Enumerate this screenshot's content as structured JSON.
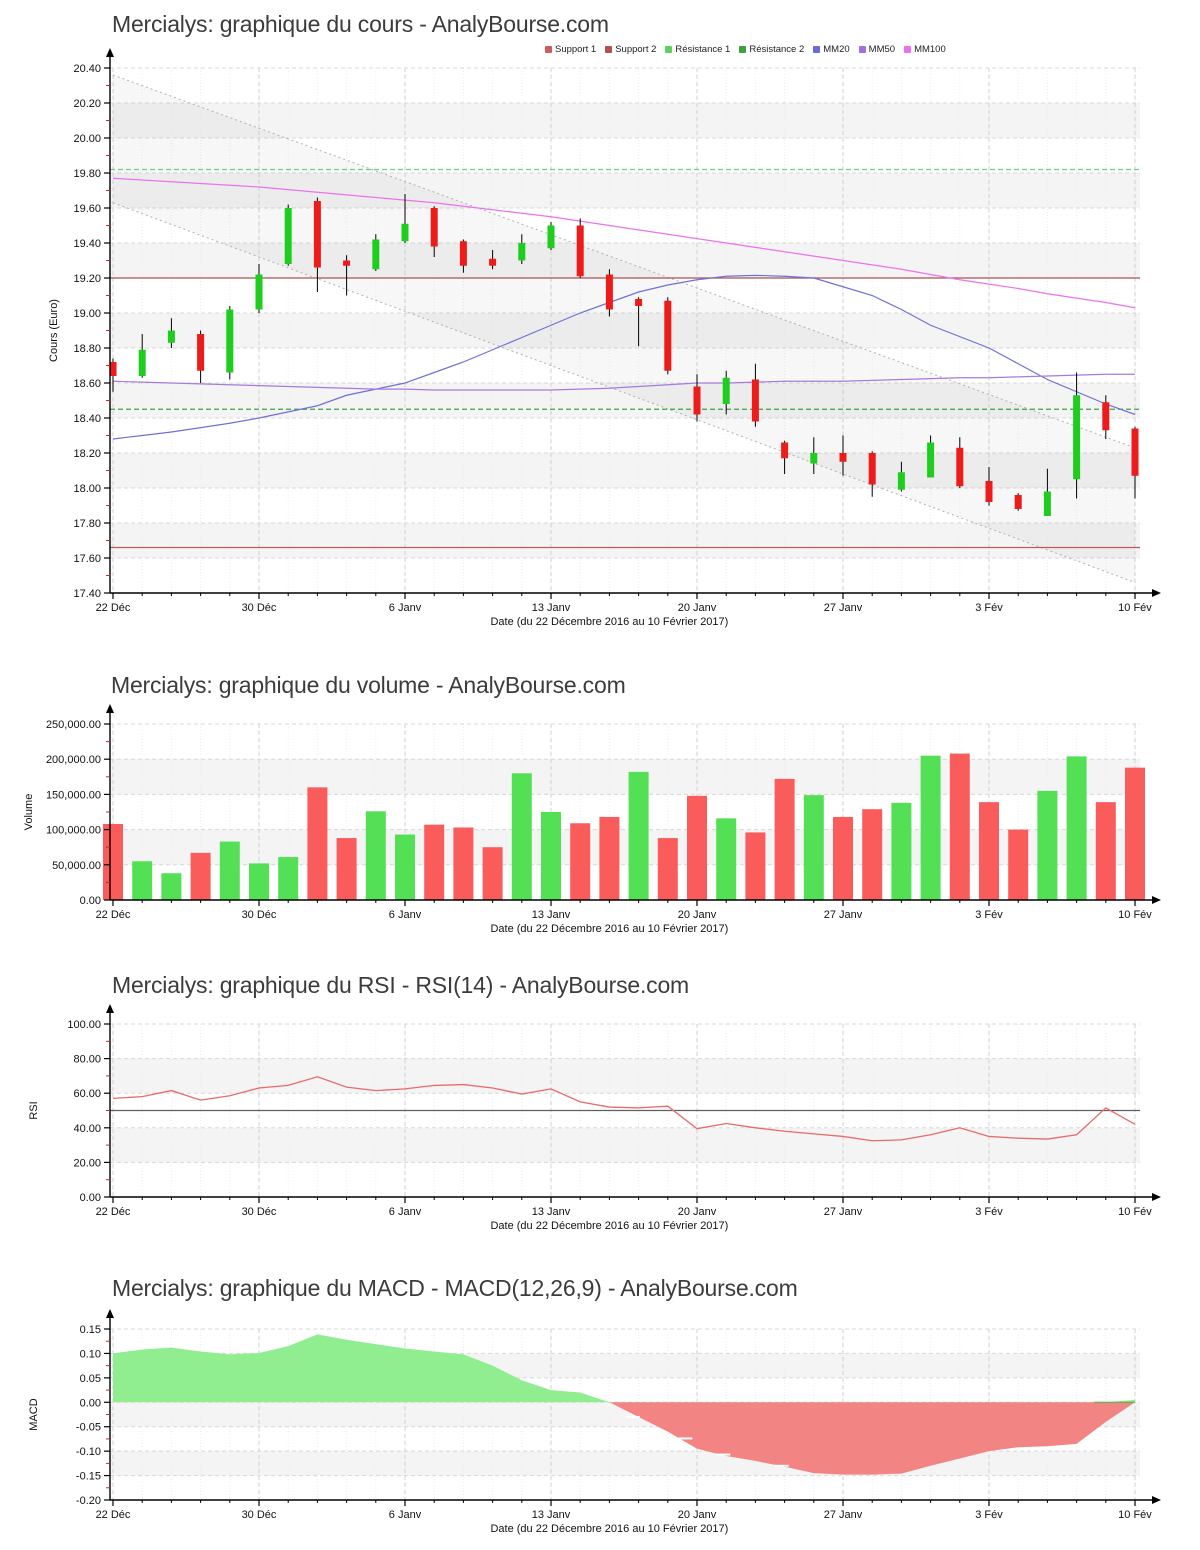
{
  "x_axis": {
    "label": "Date (du 22 Décembre 2016 au 10 Février 2017)",
    "tick_labels": [
      "22 Déc",
      "30 Déc",
      "6 Janv",
      "13 Janv",
      "20 Janv",
      "27 Janv",
      "3 Fév",
      "10 Fév"
    ],
    "tick_days": [
      1,
      6,
      11,
      16,
      21,
      26,
      31,
      36
    ],
    "n_days": 36
  },
  "colors": {
    "title_text": "#3c3c3c",
    "band": "#f4f4f4",
    "grid": "#d8d8d8",
    "day_grid": "#ededed",
    "axis": "#000000",
    "minor_tick": "#cc2222",
    "candle_up": "#1ecd1e",
    "candle_down": "#ee1b1b",
    "wick": "#000000",
    "volume_up": "#54e054",
    "volume_down": "#fa5c5c",
    "rsi_line": "#e96a6a",
    "rsi_midline": "#606060",
    "macd_pos": "#90ee90",
    "macd_neg": "#f38484",
    "support1": "#aa5252",
    "support2": "#bd5b5b",
    "resistance1": "#74ce74",
    "resistance2": "#3da23d",
    "mm20": "#7070d8",
    "mm50": "#a67ae0",
    "mm100": "#ec72ec",
    "channel_line": "#b0b0b0",
    "channel_fill": "rgba(140,140,140,0.07)"
  },
  "legend": {
    "items": [
      {
        "label": "Support 1",
        "color": "#cd5c5c"
      },
      {
        "label": "Support 2",
        "color": "#b05050"
      },
      {
        "label": "Résistance 1",
        "color": "#5dd05d"
      },
      {
        "label": "Résistance 2",
        "color": "#3da23d"
      },
      {
        "label": "MM20",
        "color": "#6a6ad8"
      },
      {
        "label": "MM50",
        "color": "#a070e0"
      },
      {
        "label": "MM100",
        "color": "#ee6fee"
      }
    ]
  },
  "chart_data": [
    {
      "id": "cours",
      "type": "candlestick",
      "title": "Mercialys: graphique du cours - AnalyBourse.com",
      "ylabel": "Cours (Euro)",
      "ylim": [
        17.4,
        20.4
      ],
      "ytick_step": 0.2,
      "y_tick_labels": [
        "20.40",
        "20.20",
        "20.00",
        "19.80",
        "19.60",
        "19.40",
        "19.20",
        "19.00",
        "18.80",
        "18.60",
        "18.40",
        "18.20",
        "18.00",
        "17.80",
        "17.60",
        "17.40"
      ],
      "candles_ohlc": [
        [
          18.72,
          18.74,
          18.55,
          18.64
        ],
        [
          18.64,
          18.88,
          18.63,
          18.79
        ],
        [
          18.83,
          18.97,
          18.8,
          18.9
        ],
        [
          18.88,
          18.9,
          18.6,
          18.67
        ],
        [
          18.66,
          19.04,
          18.62,
          19.02
        ],
        [
          19.02,
          19.28,
          19.0,
          19.22
        ],
        [
          19.28,
          19.62,
          19.27,
          19.6
        ],
        [
          19.64,
          19.66,
          19.12,
          19.26
        ],
        [
          19.3,
          19.33,
          19.1,
          19.27
        ],
        [
          19.25,
          19.45,
          19.24,
          19.42
        ],
        [
          19.41,
          19.68,
          19.4,
          19.51
        ],
        [
          19.6,
          19.61,
          19.32,
          19.38
        ],
        [
          19.41,
          19.42,
          19.23,
          19.27
        ],
        [
          19.31,
          19.36,
          19.25,
          19.27
        ],
        [
          19.3,
          19.45,
          19.28,
          19.4
        ],
        [
          19.37,
          19.52,
          19.36,
          19.5
        ],
        [
          19.5,
          19.54,
          19.2,
          19.21
        ],
        [
          19.22,
          19.25,
          18.98,
          19.02
        ],
        [
          19.08,
          19.09,
          18.81,
          19.04
        ],
        [
          19.07,
          19.09,
          18.65,
          18.67
        ],
        [
          18.58,
          18.65,
          18.38,
          18.42
        ],
        [
          18.48,
          18.67,
          18.42,
          18.63
        ],
        [
          18.62,
          18.71,
          18.35,
          18.38
        ],
        [
          18.26,
          18.27,
          18.08,
          18.17
        ],
        [
          18.14,
          18.29,
          18.08,
          18.2
        ],
        [
          18.2,
          18.3,
          18.07,
          18.15
        ],
        [
          18.2,
          18.21,
          17.95,
          18.02
        ],
        [
          17.99,
          18.15,
          17.98,
          18.09
        ],
        [
          18.06,
          18.3,
          18.06,
          18.26
        ],
        [
          18.23,
          18.29,
          18.0,
          18.01
        ],
        [
          18.04,
          18.12,
          17.9,
          17.92
        ],
        [
          17.96,
          17.97,
          17.87,
          17.88
        ],
        [
          17.84,
          18.11,
          17.84,
          17.98
        ],
        [
          18.05,
          18.66,
          17.94,
          18.53
        ],
        [
          18.49,
          18.53,
          18.28,
          18.33
        ],
        [
          18.34,
          18.35,
          17.94,
          18.07
        ]
      ],
      "overlays": {
        "support1": {
          "value": 19.2,
          "style": "solid"
        },
        "support2": {
          "value": 17.66,
          "style": "solid"
        },
        "resistance1": {
          "value": 19.82,
          "style": "dashed"
        },
        "resistance2": {
          "value": 18.45,
          "style": "dashed"
        },
        "mm20": [
          18.28,
          18.3,
          18.32,
          18.345,
          18.37,
          18.4,
          18.435,
          18.47,
          18.53,
          18.565,
          18.6,
          18.66,
          18.72,
          18.79,
          18.86,
          18.93,
          19.0,
          19.06,
          19.12,
          19.16,
          19.19,
          19.21,
          19.215,
          19.21,
          19.2,
          19.15,
          19.1,
          19.02,
          18.93,
          18.865,
          18.8,
          18.71,
          18.62,
          18.55,
          18.48,
          18.42
        ],
        "mm50": [
          18.61,
          18.605,
          18.6,
          18.595,
          18.59,
          18.585,
          18.58,
          18.575,
          18.57,
          18.565,
          18.565,
          18.56,
          18.56,
          18.56,
          18.56,
          18.56,
          18.565,
          18.57,
          18.58,
          18.59,
          18.6,
          18.6,
          18.605,
          18.61,
          18.61,
          18.61,
          18.615,
          18.62,
          18.625,
          18.63,
          18.63,
          18.635,
          18.64,
          18.645,
          18.65,
          18.65
        ],
        "mm100": [
          19.77,
          19.76,
          19.75,
          19.74,
          19.73,
          19.72,
          19.705,
          19.69,
          19.675,
          19.66,
          19.645,
          19.63,
          19.61,
          19.59,
          19.57,
          19.55,
          19.525,
          19.5,
          19.475,
          19.45,
          19.425,
          19.4,
          19.375,
          19.35,
          19.325,
          19.3,
          19.275,
          19.25,
          19.22,
          19.19,
          19.165,
          19.14,
          19.11,
          19.085,
          19.06,
          19.03
        ],
        "channel": {
          "upper": [
            20.36,
            18.23
          ],
          "lower": [
            19.63,
            17.46
          ]
        }
      }
    },
    {
      "id": "volume",
      "type": "bar",
      "title": "Mercialys: graphique du volume - AnalyBourse.com",
      "ylabel": "Volume",
      "ylim": [
        0,
        250000
      ],
      "ytick_step": 50000,
      "y_tick_labels": [
        "250,000.00",
        "200,000.00",
        "150,000.00",
        "100,000.00",
        "50,000.00",
        "0.00"
      ],
      "values": [
        108000,
        55000,
        38000,
        67000,
        83000,
        52000,
        61000,
        160000,
        88000,
        126000,
        93000,
        107000,
        103000,
        75000,
        180000,
        125000,
        109000,
        118000,
        182000,
        88000,
        148000,
        116000,
        96000,
        172000,
        149000,
        118000,
        129000,
        138000,
        205000,
        208000,
        139000,
        100000,
        155000,
        204000,
        139000,
        188000
      ],
      "directions": [
        "down",
        "up",
        "up",
        "down",
        "up",
        "up",
        "up",
        "down",
        "down",
        "up",
        "up",
        "down",
        "down",
        "down",
        "up",
        "up",
        "down",
        "down",
        "up",
        "down",
        "down",
        "up",
        "down",
        "down",
        "up",
        "down",
        "down",
        "up",
        "up",
        "down",
        "down",
        "down",
        "up",
        "up",
        "down",
        "down"
      ]
    },
    {
      "id": "rsi",
      "type": "line",
      "title": "Mercialys: graphique du RSI - RSI(14) - AnalyBourse.com",
      "ylabel": "RSI",
      "ylim": [
        0,
        100
      ],
      "ytick_step": 20,
      "y_tick_labels": [
        "100.00",
        "80.00",
        "60.00",
        "40.00",
        "20.00",
        "0.00"
      ],
      "midline": 50,
      "values": [
        57,
        58,
        61.5,
        56,
        58.5,
        63,
        64.5,
        69.5,
        63.5,
        61.5,
        62.5,
        64.5,
        65,
        63,
        59.5,
        62.5,
        55,
        52,
        51.5,
        52.5,
        39.5,
        42.5,
        40,
        38,
        36.5,
        35,
        32.5,
        33,
        36,
        40,
        35,
        34,
        33.5,
        36,
        51.5,
        42
      ]
    },
    {
      "id": "macd",
      "type": "area",
      "title": "Mercialys: graphique du MACD - MACD(12,26,9) - AnalyBourse.com",
      "ylabel": "MACD",
      "ylim": [
        -0.2,
        0.15
      ],
      "ytick_step": 0.05,
      "y_tick_labels": [
        "0.15",
        "0.10",
        "0.05",
        "0.00",
        "-0.05",
        "-0.10",
        "-0.15",
        "-0.20"
      ],
      "values": [
        0.1,
        0.108,
        0.112,
        0.104,
        0.098,
        0.101,
        0.115,
        0.139,
        0.128,
        0.119,
        0.11,
        0.104,
        0.098,
        0.075,
        0.045,
        0.025,
        0.02,
        0.0,
        -0.03,
        -0.06,
        -0.095,
        -0.11,
        -0.12,
        -0.132,
        -0.145,
        -0.148,
        -0.148,
        -0.146,
        -0.13,
        -0.115,
        -0.1,
        -0.092,
        -0.09,
        -0.085,
        -0.04,
        0.005
      ],
      "signal_dashes": [
        {
          "day": 18.8,
          "value": -0.03
        },
        {
          "day": 20.6,
          "value": -0.074
        },
        {
          "day": 21.9,
          "value": -0.107
        },
        {
          "day": 23.9,
          "value": -0.13
        }
      ],
      "zero_tail": {
        "from": 34.6,
        "to": 36
      }
    }
  ]
}
